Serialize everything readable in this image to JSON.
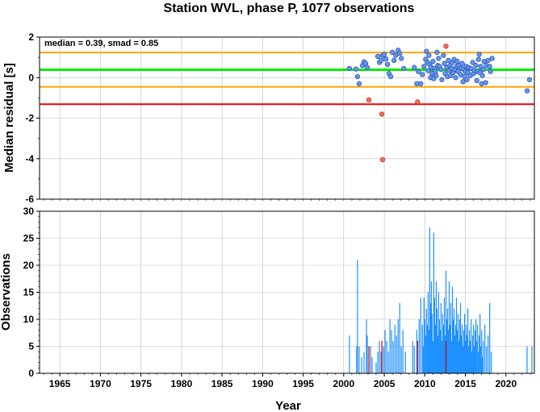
{
  "title": "Station WVL, phase P, 1077 observations",
  "chart_data": [
    {
      "type": "scatter",
      "ylabel": "Median residual [s]",
      "xlim": [
        1962.5,
        2023.5
      ],
      "ylim": [
        -6,
        2
      ],
      "yticks": [
        -6,
        -4,
        -2,
        0,
        2
      ],
      "grid": true,
      "annotation": "median = 0.39, smad = 0.85",
      "colors": {
        "median": "#00ee00",
        "smad": "#ffa500",
        "limit": "#ee0000",
        "point": "#6495ed",
        "outlier": "#ff6a5a"
      },
      "reference_lines": [
        {
          "kind": "median",
          "y": 0.39
        },
        {
          "kind": "smad",
          "y": 1.24
        },
        {
          "kind": "smad",
          "y": -0.46
        },
        {
          "kind": "limit",
          "y": -1.31
        }
      ],
      "points": [
        [
          2000.7,
          0.45
        ],
        [
          2001.5,
          0.42
        ],
        [
          2001.7,
          0.05
        ],
        [
          2001.9,
          -0.3
        ],
        [
          2002.3,
          0.6
        ],
        [
          2002.5,
          0.78
        ],
        [
          2002.7,
          0.7
        ],
        [
          2002.9,
          0.5
        ],
        [
          2004.2,
          1.05
        ],
        [
          2004.4,
          0.75
        ],
        [
          2004.6,
          0.85
        ],
        [
          2004.8,
          1.1
        ],
        [
          2005.0,
          1.15
        ],
        [
          2005.2,
          0.92
        ],
        [
          2005.4,
          0.65
        ],
        [
          2005.6,
          0.2
        ],
        [
          2005.8,
          0.05
        ],
        [
          2006.0,
          1.25
        ],
        [
          2006.2,
          0.85
        ],
        [
          2006.4,
          1.1
        ],
        [
          2006.7,
          1.35
        ],
        [
          2006.9,
          1.2
        ],
        [
          2007.1,
          0.95
        ],
        [
          2007.4,
          0.45
        ],
        [
          2008.7,
          0.5
        ],
        [
          2009.0,
          -0.3
        ],
        [
          2009.2,
          0.3
        ],
        [
          2009.5,
          -0.3
        ],
        [
          2009.7,
          0.15
        ],
        [
          2009.9,
          0.55
        ],
        [
          2010.1,
          0.9
        ],
        [
          2010.2,
          1.3
        ],
        [
          2010.3,
          0.75
        ],
        [
          2010.4,
          0.35
        ],
        [
          2010.5,
          1.1
        ],
        [
          2010.6,
          0.65
        ],
        [
          2010.7,
          0.0
        ],
        [
          2010.8,
          0.5
        ],
        [
          2010.9,
          0.2
        ],
        [
          2011.0,
          0.8
        ],
        [
          2011.1,
          -0.05
        ],
        [
          2011.2,
          0.45
        ],
        [
          2011.3,
          0.3
        ],
        [
          2011.4,
          0.1
        ],
        [
          2011.5,
          1.25
        ],
        [
          2011.6,
          0.6
        ],
        [
          2011.7,
          0.95
        ],
        [
          2011.8,
          0.55
        ],
        [
          2012.0,
          0.4
        ],
        [
          2012.1,
          -0.1
        ],
        [
          2012.3,
          1.1
        ],
        [
          2012.4,
          0.7
        ],
        [
          2012.5,
          0.2
        ],
        [
          2012.7,
          0.5
        ],
        [
          2012.8,
          0.05
        ],
        [
          2012.9,
          0.85
        ],
        [
          2013.0,
          0.35
        ],
        [
          2013.1,
          0.6
        ],
        [
          2013.2,
          0.1
        ],
        [
          2013.3,
          0.45
        ],
        [
          2013.4,
          0.75
        ],
        [
          2013.5,
          0.25
        ],
        [
          2013.6,
          0.9
        ],
        [
          2013.7,
          0.4
        ],
        [
          2013.8,
          0.0
        ],
        [
          2013.9,
          0.55
        ],
        [
          2014.0,
          0.8
        ],
        [
          2014.1,
          0.3
        ],
        [
          2014.2,
          0.6
        ],
        [
          2014.4,
          0.15
        ],
        [
          2014.5,
          0.45
        ],
        [
          2014.6,
          0.7
        ],
        [
          2014.7,
          -0.2
        ],
        [
          2014.8,
          0.4
        ],
        [
          2014.9,
          0.05
        ],
        [
          2015.0,
          0.3
        ],
        [
          2015.1,
          0.55
        ],
        [
          2015.2,
          -0.1
        ],
        [
          2015.3,
          0.25
        ],
        [
          2015.4,
          0.5
        ],
        [
          2015.6,
          0.1
        ],
        [
          2015.7,
          0.45
        ],
        [
          2015.9,
          0.75
        ],
        [
          2016.0,
          0.2
        ],
        [
          2016.1,
          0.35
        ],
        [
          2016.3,
          0.6
        ],
        [
          2016.4,
          -0.15
        ],
        [
          2016.5,
          0.3
        ],
        [
          2016.6,
          0.9
        ],
        [
          2016.7,
          1.15
        ],
        [
          2016.8,
          0.25
        ],
        [
          2016.9,
          0.55
        ],
        [
          2017.0,
          -0.3
        ],
        [
          2017.1,
          0.1
        ],
        [
          2017.2,
          0.4
        ],
        [
          2017.3,
          0.8
        ],
        [
          2017.5,
          -0.25
        ],
        [
          2017.6,
          0.6
        ],
        [
          2017.8,
          0.85
        ],
        [
          2018.0,
          0.55
        ],
        [
          2018.1,
          0.3
        ],
        [
          2018.3,
          0.95
        ],
        [
          2022.6,
          -0.65
        ],
        [
          2022.9,
          -0.1
        ]
      ],
      "outliers": [
        [
          2003.1,
          -1.1
        ],
        [
          2004.7,
          -1.8
        ],
        [
          2004.8,
          -4.05
        ],
        [
          2009.1,
          -1.2
        ],
        [
          2012.6,
          1.55
        ]
      ]
    },
    {
      "type": "bar",
      "xlabel": "Year",
      "ylabel": "Observations",
      "xlim": [
        1962.5,
        2023.5
      ],
      "ylim": [
        0,
        30
      ],
      "xticks": [
        1965,
        1970,
        1975,
        1980,
        1985,
        1990,
        1995,
        2000,
        2005,
        2010,
        2015,
        2020
      ],
      "yticks": [
        0,
        5,
        10,
        15,
        20,
        25,
        30
      ],
      "grid": true,
      "colors": {
        "bar": "#1e90ff",
        "outlier": "#cc0000"
      },
      "bars": [
        [
          2000.7,
          7
        ],
        [
          2001.6,
          5
        ],
        [
          2001.7,
          21
        ],
        [
          2001.9,
          5
        ],
        [
          2002.2,
          3
        ],
        [
          2002.5,
          4
        ],
        [
          2002.8,
          10
        ],
        [
          2002.9,
          7
        ],
        [
          2003.3,
          5
        ],
        [
          2003.5,
          3
        ],
        [
          2004.0,
          2
        ],
        [
          2004.2,
          4
        ],
        [
          2004.4,
          6
        ],
        [
          2004.6,
          4
        ],
        [
          2004.9,
          5
        ],
        [
          2005.1,
          8
        ],
        [
          2005.3,
          6
        ],
        [
          2005.5,
          4
        ],
        [
          2005.7,
          10
        ],
        [
          2005.9,
          8
        ],
        [
          2006.1,
          6
        ],
        [
          2006.3,
          9
        ],
        [
          2006.5,
          7
        ],
        [
          2006.7,
          10
        ],
        [
          2006.9,
          13
        ],
        [
          2007.1,
          5
        ],
        [
          2007.3,
          8
        ],
        [
          2007.6,
          4
        ],
        [
          2008.5,
          6
        ],
        [
          2008.7,
          5
        ],
        [
          2009.0,
          8
        ],
        [
          2009.1,
          6
        ],
        [
          2009.3,
          10
        ],
        [
          2009.5,
          14
        ],
        [
          2009.7,
          9
        ],
        [
          2009.8,
          5
        ],
        [
          2009.9,
          14
        ],
        [
          2010.0,
          10
        ],
        [
          2010.1,
          7
        ],
        [
          2010.2,
          12
        ],
        [
          2010.3,
          9
        ],
        [
          2010.4,
          15
        ],
        [
          2010.5,
          8
        ],
        [
          2010.6,
          27
        ],
        [
          2010.7,
          13
        ],
        [
          2010.8,
          17
        ],
        [
          2010.9,
          11
        ],
        [
          2011.0,
          6
        ],
        [
          2011.1,
          26
        ],
        [
          2011.2,
          14
        ],
        [
          2011.3,
          9
        ],
        [
          2011.4,
          17
        ],
        [
          2011.5,
          12
        ],
        [
          2011.6,
          7
        ],
        [
          2011.7,
          15
        ],
        [
          2011.8,
          10
        ],
        [
          2011.9,
          8
        ],
        [
          2012.0,
          13
        ],
        [
          2012.1,
          6
        ],
        [
          2012.2,
          11
        ],
        [
          2012.3,
          9
        ],
        [
          2012.4,
          14
        ],
        [
          2012.5,
          7
        ],
        [
          2012.6,
          19
        ],
        [
          2012.7,
          10
        ],
        [
          2012.8,
          12
        ],
        [
          2012.9,
          8
        ],
        [
          2013.0,
          17
        ],
        [
          2013.1,
          9
        ],
        [
          2013.2,
          13
        ],
        [
          2013.3,
          6
        ],
        [
          2013.4,
          16
        ],
        [
          2013.5,
          10
        ],
        [
          2013.6,
          12
        ],
        [
          2013.7,
          7
        ],
        [
          2013.8,
          9
        ],
        [
          2013.9,
          14
        ],
        [
          2014.0,
          8
        ],
        [
          2014.1,
          11
        ],
        [
          2014.2,
          6
        ],
        [
          2014.3,
          10
        ],
        [
          2014.4,
          13
        ],
        [
          2014.5,
          7
        ],
        [
          2014.6,
          9
        ],
        [
          2014.7,
          5
        ],
        [
          2014.8,
          8
        ],
        [
          2014.9,
          11
        ],
        [
          2015.0,
          6
        ],
        [
          2015.1,
          9
        ],
        [
          2015.2,
          7
        ],
        [
          2015.3,
          12
        ],
        [
          2015.4,
          5
        ],
        [
          2015.5,
          8
        ],
        [
          2015.6,
          6
        ],
        [
          2015.7,
          10
        ],
        [
          2015.8,
          4
        ],
        [
          2015.9,
          7
        ],
        [
          2016.0,
          9
        ],
        [
          2016.1,
          5
        ],
        [
          2016.2,
          8
        ],
        [
          2016.3,
          10
        ],
        [
          2016.4,
          6
        ],
        [
          2016.5,
          9
        ],
        [
          2016.6,
          4
        ],
        [
          2016.7,
          7
        ],
        [
          2016.8,
          11
        ],
        [
          2016.9,
          5
        ],
        [
          2017.0,
          8
        ],
        [
          2017.1,
          3
        ],
        [
          2017.2,
          6
        ],
        [
          2017.4,
          9
        ],
        [
          2017.6,
          5
        ],
        [
          2017.8,
          7
        ],
        [
          2018.0,
          13
        ],
        [
          2018.2,
          4
        ],
        [
          2022.6,
          5
        ],
        [
          2023.2,
          5
        ]
      ],
      "outlier_bars": [
        [
          2003.1,
          5
        ],
        [
          2004.7,
          6
        ],
        [
          2009.1,
          6
        ],
        [
          2012.6,
          6
        ]
      ]
    }
  ]
}
